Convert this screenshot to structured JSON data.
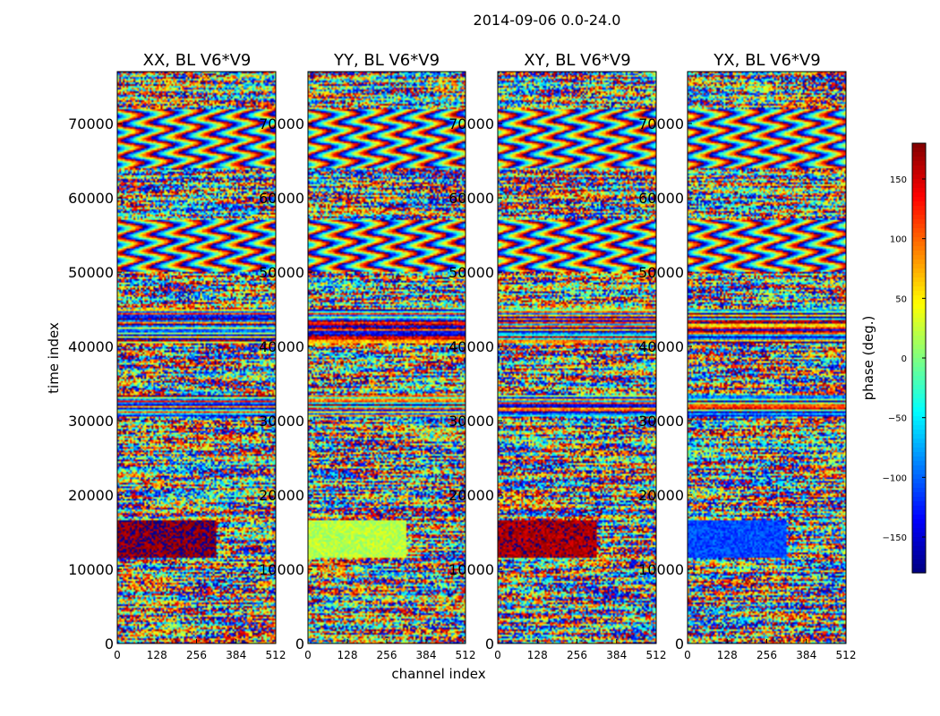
{
  "chart_data": {
    "type": "heatmap",
    "suptitle": "2014-09-06 0.0-24.0",
    "xlabel": "channel index",
    "ylabel": "time index",
    "x_ticks": [
      "0",
      "128",
      "256",
      "384",
      "512"
    ],
    "y_ticks": [
      "0",
      "10000",
      "20000",
      "30000",
      "40000",
      "50000",
      "60000",
      "70000"
    ],
    "xlim": [
      0,
      512
    ],
    "ylim": [
      0,
      77000
    ],
    "panels": [
      {
        "title": "XX, BL V6*V9",
        "band_bias": 175
      },
      {
        "title": "YY, BL V6*V9",
        "band_bias": 20
      },
      {
        "title": "XY, BL V6*V9",
        "band_bias": 165
      },
      {
        "title": "YX, BL V6*V9",
        "band_bias": -110
      }
    ],
    "colorbar": {
      "label": "phase (deg.)",
      "range": [
        -180,
        180
      ],
      "ticks": [
        "150",
        "100",
        "50",
        "0",
        "−50",
        "−100",
        "−150"
      ],
      "tick_values": [
        150,
        100,
        50,
        0,
        -50,
        -100,
        -150
      ],
      "colormap": "jet"
    }
  }
}
